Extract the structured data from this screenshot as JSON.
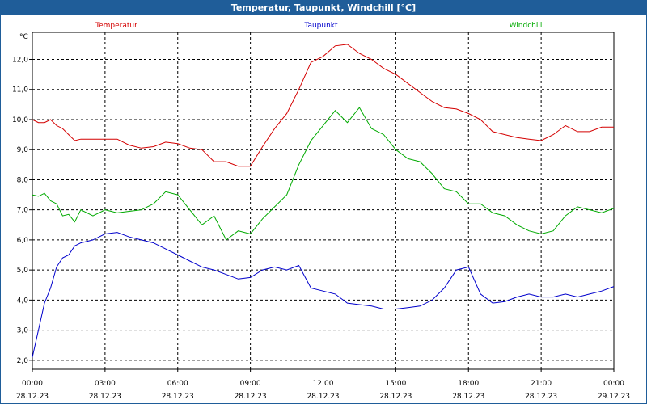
{
  "window": {
    "title": "Temperatur, Taupunkt, Windchill [°C]"
  },
  "chart_data": {
    "type": "line",
    "title": "Temperatur, Taupunkt, Windchill [°C]",
    "ylabel": "°C",
    "ylim": [
      1.7,
      12.9
    ],
    "yticks": [
      "2,0",
      "3,0",
      "4,0",
      "5,0",
      "6,0",
      "7,0",
      "8,0",
      "9,0",
      "10,0",
      "11,0",
      "12,0"
    ],
    "xlim": [
      0,
      24
    ],
    "xticks": [
      {
        "time": "00:00",
        "date": "28.12.23"
      },
      {
        "time": "03:00",
        "date": "28.12.23"
      },
      {
        "time": "06:00",
        "date": "28.12.23"
      },
      {
        "time": "09:00",
        "date": "28.12.23"
      },
      {
        "time": "12:00",
        "date": "28.12.23"
      },
      {
        "time": "15:00",
        "date": "28.12.23"
      },
      {
        "time": "18:00",
        "date": "28.12.23"
      },
      {
        "time": "21:00",
        "date": "28.12.23"
      },
      {
        "time": "00:00",
        "date": "29.12.23"
      }
    ],
    "grid": true,
    "legend_position": "top",
    "series": [
      {
        "name": "Temperatur",
        "color": "#d40000",
        "x": [
          0,
          0.25,
          0.5,
          0.75,
          1,
          1.25,
          1.5,
          1.75,
          2,
          2.5,
          3,
          3.5,
          4,
          4.5,
          5,
          5.5,
          6,
          6.5,
          7,
          7.5,
          8,
          8.5,
          9,
          9.5,
          10,
          10.5,
          11,
          11.5,
          12,
          12.5,
          13,
          13.5,
          14,
          14.5,
          15,
          15.5,
          16,
          16.5,
          17,
          17.5,
          18,
          18.5,
          19,
          19.5,
          20,
          20.5,
          21,
          21.5,
          22,
          22.5,
          23,
          23.5,
          24
        ],
        "y": [
          10.0,
          9.9,
          9.9,
          10.0,
          9.8,
          9.7,
          9.5,
          9.3,
          9.35,
          9.35,
          9.35,
          9.35,
          9.15,
          9.05,
          9.1,
          9.25,
          9.2,
          9.05,
          9.0,
          8.6,
          8.6,
          8.45,
          8.45,
          9.1,
          9.7,
          10.2,
          11.0,
          11.9,
          12.1,
          12.45,
          12.5,
          12.2,
          12.0,
          11.7,
          11.5,
          11.2,
          10.9,
          10.6,
          10.4,
          10.35,
          10.2,
          10.0,
          9.6,
          9.5,
          9.4,
          9.35,
          9.3,
          9.5,
          9.8,
          9.6,
          9.6,
          9.75,
          9.75
        ]
      },
      {
        "name": "Taupunkt",
        "color": "#0000cc",
        "x": [
          0,
          0.25,
          0.5,
          0.75,
          1,
          1.25,
          1.5,
          1.75,
          2,
          2.5,
          3,
          3.5,
          4,
          4.5,
          5,
          5.5,
          6,
          6.5,
          7,
          7.5,
          8,
          8.5,
          9,
          9.5,
          10,
          10.5,
          11,
          11.5,
          12,
          12.5,
          13,
          13.5,
          14,
          14.5,
          15,
          15.5,
          16,
          16.5,
          17,
          17.5,
          18,
          18.5,
          19,
          19.5,
          20,
          20.5,
          21,
          21.5,
          22,
          22.5,
          23,
          23.5,
          24
        ],
        "y": [
          2.1,
          3.0,
          3.9,
          4.4,
          5.1,
          5.4,
          5.5,
          5.8,
          5.9,
          6.0,
          6.2,
          6.25,
          6.1,
          6.0,
          5.9,
          5.7,
          5.5,
          5.3,
          5.1,
          5.0,
          4.85,
          4.7,
          4.75,
          5.0,
          5.1,
          5.0,
          5.15,
          4.4,
          4.3,
          4.2,
          3.9,
          3.85,
          3.8,
          3.7,
          3.7,
          3.75,
          3.8,
          4.0,
          4.4,
          5.0,
          5.1,
          4.2,
          3.9,
          3.95,
          4.1,
          4.2,
          4.1,
          4.1,
          4.2,
          4.1,
          4.2,
          4.3,
          4.45
        ]
      },
      {
        "name": "Windchill",
        "color": "#00aa00",
        "x": [
          0,
          0.25,
          0.5,
          0.75,
          1,
          1.25,
          1.5,
          1.75,
          2,
          2.5,
          3,
          3.5,
          4,
          4.5,
          5,
          5.5,
          6,
          6.5,
          7,
          7.5,
          8,
          8.5,
          9,
          9.5,
          10,
          10.5,
          11,
          11.5,
          12,
          12.5,
          13,
          13.5,
          14,
          14.5,
          15,
          15.5,
          16,
          16.5,
          17,
          17.5,
          18,
          18.5,
          19,
          19.5,
          20,
          20.5,
          21,
          21.5,
          22,
          22.5,
          23,
          23.5,
          24
        ],
        "y": [
          7.5,
          7.45,
          7.55,
          7.3,
          7.2,
          6.8,
          6.85,
          6.6,
          7.0,
          6.8,
          7.0,
          6.9,
          6.95,
          7.0,
          7.2,
          7.6,
          7.5,
          7.0,
          6.5,
          6.8,
          6.0,
          6.3,
          6.2,
          6.7,
          7.1,
          7.5,
          8.5,
          9.3,
          9.8,
          10.3,
          9.9,
          10.4,
          9.7,
          9.5,
          9.0,
          8.7,
          8.6,
          8.2,
          7.7,
          7.6,
          7.2,
          7.2,
          6.9,
          6.8,
          6.5,
          6.3,
          6.2,
          6.3,
          6.8,
          7.1,
          7.0,
          6.9,
          7.05
        ]
      }
    ]
  }
}
